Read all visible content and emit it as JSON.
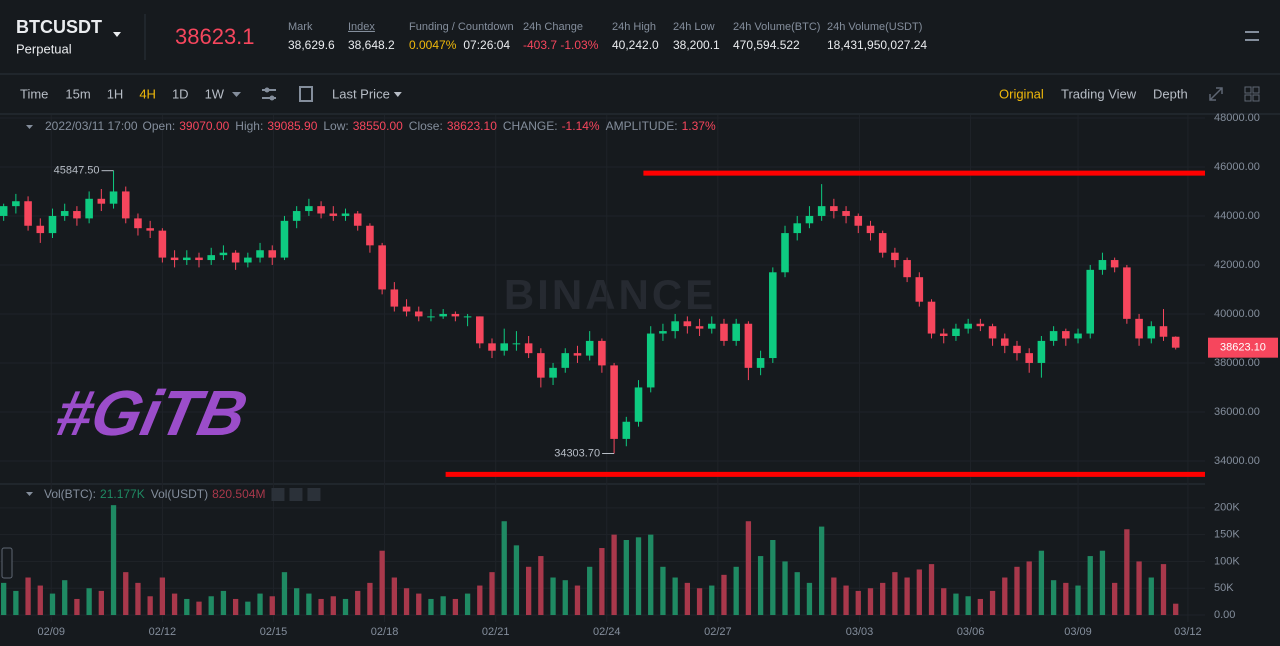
{
  "header": {
    "symbol": "BTCUSDT",
    "contract": "Perpetual",
    "last_price": "38623.1",
    "stats": [
      {
        "name": "Mark",
        "values": [
          "38,629.6"
        ]
      },
      {
        "name": "Index",
        "values": [
          "38,648.2"
        ]
      },
      {
        "name": "Funding / Countdown",
        "values": [
          "0.0047%",
          "07:26:04"
        ]
      },
      {
        "name": "24h Change",
        "values": [
          "-403.7 -1.03%"
        ]
      },
      {
        "name": "24h High",
        "values": [
          "40,242.0"
        ]
      },
      {
        "name": "24h Low",
        "values": [
          "38,200.1"
        ]
      },
      {
        "name": "24h Volume(BTC)",
        "values": [
          "470,594.522"
        ]
      },
      {
        "name": "24h Volume(USDT)",
        "values": [
          "18,431,950,027.24"
        ]
      }
    ]
  },
  "toolbar": {
    "intervals": [
      "Time",
      "15m",
      "1H",
      "4H",
      "1D",
      "1W"
    ],
    "active": "4H",
    "price_type": "Last Price",
    "views": [
      "Original",
      "Trading View",
      "Depth"
    ],
    "active_view": "Original"
  },
  "chart_data": {
    "type": "candlestick",
    "watermark": "BINANCE",
    "logo": "#GiTB",
    "legend": {
      "time": "2022/03/11 17:00",
      "items": [
        {
          "name": "Open:",
          "label": "39070.00"
        },
        {
          "name": "High:",
          "label": "39085.90"
        },
        {
          "name": "Low:",
          "label": "38550.00"
        },
        {
          "name": "Close:",
          "label": "38623.10"
        },
        {
          "name": "CHANGE:",
          "label": "-1.14%"
        },
        {
          "name": "AMPLITUDE:",
          "label": "1.37%"
        }
      ]
    },
    "up_color": "#0ecb81",
    "down_color": "#f6465d",
    "volume_up_color": "#1f8a63",
    "volume_down_color": "#a8384b",
    "xlim": [
      -0.3,
      98.4
    ],
    "xticks": [
      {
        "value": 3.9,
        "label": "02/09"
      },
      {
        "value": 13.0,
        "label": "02/12"
      },
      {
        "value": 22.1,
        "label": "02/15"
      },
      {
        "value": 31.2,
        "label": "02/18"
      },
      {
        "value": 40.3,
        "label": "02/21"
      },
      {
        "value": 49.4,
        "label": "02/24"
      },
      {
        "value": 58.5,
        "label": "02/27"
      },
      {
        "value": 70.1,
        "label": "03/03"
      },
      {
        "value": 79.2,
        "label": "03/06"
      },
      {
        "value": 88.0,
        "label": "03/09"
      },
      {
        "value": 97.0,
        "label": "03/12"
      }
    ],
    "ylim": [
      33100,
      48120
    ],
    "yticks": [
      {
        "value": 34000,
        "label": "34000.00"
      },
      {
        "value": 36000,
        "label": "36000.00"
      },
      {
        "value": 38000,
        "label": "38000.00"
      },
      {
        "value": 40000,
        "label": "40000.00"
      },
      {
        "value": 42000,
        "label": "42000.00"
      },
      {
        "value": 44000,
        "label": "44000.00"
      },
      {
        "value": 46000,
        "label": "46000.00"
      },
      {
        "value": 48000,
        "label": "48000.00"
      }
    ],
    "ohlc": [
      [
        44000,
        44500,
        43800,
        44400
      ],
      [
        44400,
        44900,
        44100,
        44600
      ],
      [
        44600,
        44800,
        43400,
        43600
      ],
      [
        43600,
        43900,
        42900,
        43300
      ],
      [
        43300,
        44300,
        43100,
        44000
      ],
      [
        44000,
        44500,
        43800,
        44200
      ],
      [
        44200,
        44400,
        43600,
        43900
      ],
      [
        43900,
        45000,
        43700,
        44700
      ],
      [
        44700,
        45100,
        44200,
        44500
      ],
      [
        44500,
        45847.5,
        44300,
        45000
      ],
      [
        45000,
        45200,
        43700,
        43900
      ],
      [
        43900,
        44100,
        43200,
        43500
      ],
      [
        43500,
        43800,
        43100,
        43400
      ],
      [
        43400,
        43500,
        42100,
        42300
      ],
      [
        42300,
        42600,
        41900,
        42200
      ],
      [
        42200,
        42600,
        42000,
        42300
      ],
      [
        42300,
        42500,
        41900,
        42200
      ],
      [
        42200,
        42700,
        42000,
        42400
      ],
      [
        42400,
        42800,
        42200,
        42500
      ],
      [
        42500,
        42600,
        41800,
        42100
      ],
      [
        42100,
        42500,
        41900,
        42300
      ],
      [
        42300,
        42900,
        42100,
        42600
      ],
      [
        42600,
        42800,
        42000,
        42300
      ],
      [
        42300,
        44000,
        42200,
        43800
      ],
      [
        43800,
        44400,
        43500,
        44200
      ],
      [
        44200,
        44700,
        44000,
        44400
      ],
      [
        44400,
        44600,
        43900,
        44100
      ],
      [
        44100,
        44400,
        43800,
        44000
      ],
      [
        44000,
        44300,
        43800,
        44100
      ],
      [
        44100,
        44200,
        43400,
        43600
      ],
      [
        43600,
        43700,
        42500,
        42800
      ],
      [
        42800,
        42900,
        40800,
        41000
      ],
      [
        41000,
        41300,
        40100,
        40300
      ],
      [
        40300,
        40600,
        39900,
        40100
      ],
      [
        40100,
        40300,
        39700,
        39900
      ],
      [
        39900,
        40200,
        39700,
        39900
      ],
      [
        39900,
        40200,
        39800,
        40000
      ],
      [
        40000,
        40100,
        39700,
        39900
      ],
      [
        39900,
        40000,
        39500,
        39900
      ],
      [
        39900,
        39900,
        38600,
        38800
      ],
      [
        38800,
        39000,
        38200,
        38500
      ],
      [
        38500,
        39400,
        38300,
        38800
      ],
      [
        38800,
        39300,
        38500,
        38800
      ],
      [
        38800,
        39100,
        38200,
        38400
      ],
      [
        38400,
        38600,
        37000,
        37400
      ],
      [
        37400,
        38000,
        37100,
        37800
      ],
      [
        37800,
        38600,
        37600,
        38400
      ],
      [
        38400,
        38700,
        38000,
        38300
      ],
      [
        38300,
        39300,
        38100,
        38900
      ],
      [
        38900,
        39000,
        37600,
        37900
      ],
      [
        37900,
        38000,
        34303.7,
        34900
      ],
      [
        34900,
        35800,
        34600,
        35600
      ],
      [
        35600,
        37300,
        35400,
        37000
      ],
      [
        37000,
        39500,
        36800,
        39200
      ],
      [
        39200,
        39600,
        38900,
        39300
      ],
      [
        39300,
        40000,
        39000,
        39700
      ],
      [
        39700,
        39900,
        39200,
        39500
      ],
      [
        39500,
        39800,
        39100,
        39400
      ],
      [
        39400,
        39900,
        39200,
        39600
      ],
      [
        39600,
        39800,
        38700,
        38900
      ],
      [
        38900,
        39800,
        38700,
        39600
      ],
      [
        39600,
        39700,
        37300,
        37800
      ],
      [
        37800,
        38500,
        37500,
        38200
      ],
      [
        38200,
        41900,
        38000,
        41700
      ],
      [
        41700,
        43600,
        41500,
        43300
      ],
      [
        43300,
        44000,
        43000,
        43700
      ],
      [
        43700,
        44400,
        43500,
        44000
      ],
      [
        44000,
        45300,
        43800,
        44400
      ],
      [
        44400,
        44700,
        43900,
        44200
      ],
      [
        44200,
        44400,
        43700,
        44000
      ],
      [
        44000,
        44100,
        43300,
        43600
      ],
      [
        43600,
        43800,
        43000,
        43300
      ],
      [
        43300,
        43400,
        42300,
        42500
      ],
      [
        42500,
        42700,
        41900,
        42200
      ],
      [
        42200,
        42300,
        41300,
        41500
      ],
      [
        41500,
        41700,
        40300,
        40500
      ],
      [
        40500,
        40600,
        39000,
        39200
      ],
      [
        39200,
        39400,
        38800,
        39100
      ],
      [
        39100,
        39600,
        38900,
        39400
      ],
      [
        39400,
        39800,
        39200,
        39600
      ],
      [
        39600,
        39800,
        39300,
        39500
      ],
      [
        39500,
        39600,
        38700,
        39000
      ],
      [
        39000,
        39200,
        38400,
        38700
      ],
      [
        38700,
        38900,
        38100,
        38400
      ],
      [
        38400,
        38600,
        37600,
        38000
      ],
      [
        38000,
        39100,
        37400,
        38900
      ],
      [
        38900,
        39500,
        38700,
        39300
      ],
      [
        39300,
        39400,
        38700,
        39000
      ],
      [
        39000,
        39400,
        38800,
        39200
      ],
      [
        39200,
        42000,
        39000,
        41800
      ],
      [
        41800,
        42500,
        41600,
        42200
      ],
      [
        42200,
        42300,
        41700,
        41900
      ],
      [
        41900,
        42000,
        39600,
        39800
      ],
      [
        39800,
        40000,
        38700,
        39000
      ],
      [
        39000,
        39700,
        38800,
        39500
      ],
      [
        39500,
        40200,
        38900,
        39070
      ],
      [
        39070,
        39085.9,
        38550,
        38623.1
      ]
    ],
    "annotations": [
      {
        "index": 9,
        "value": 45847.5,
        "label": "45847.50"
      },
      {
        "index": 50,
        "value": 34303.7,
        "label": "34303.70"
      }
    ],
    "price_tag": {
      "value": 38623.1,
      "label": "38623.10"
    },
    "drawn_lines": [
      {
        "value": 45750,
        "from": 52.4,
        "color": "#ff0000"
      },
      {
        "value": 33450,
        "from": 36.2,
        "color": "#ff0000"
      }
    ],
    "volume": {
      "legend": [
        {
          "name": "Vol(BTC):",
          "label": "21.177K"
        },
        {
          "name": "Vol(USDT)",
          "label": "820.504M"
        }
      ],
      "ylim": [
        -13000,
        237000
      ],
      "yticks": [
        {
          "value": 0,
          "label": "0.00"
        },
        {
          "value": 50000,
          "label": "50K"
        },
        {
          "value": 100000,
          "label": "100K"
        },
        {
          "value": 150000,
          "label": "150K"
        },
        {
          "value": 200000,
          "label": "200K"
        }
      ],
      "values": [
        60000,
        45000,
        70000,
        55000,
        40000,
        65000,
        30000,
        50000,
        45000,
        205000,
        80000,
        60000,
        35000,
        70000,
        40000,
        30000,
        25000,
        35000,
        45000,
        30000,
        25000,
        40000,
        35000,
        80000,
        50000,
        40000,
        30000,
        35000,
        30000,
        45000,
        60000,
        120000,
        70000,
        50000,
        40000,
        30000,
        35000,
        30000,
        40000,
        55000,
        80000,
        175000,
        130000,
        90000,
        110000,
        70000,
        65000,
        55000,
        90000,
        125000,
        150000,
        140000,
        145000,
        150000,
        90000,
        70000,
        60000,
        50000,
        55000,
        75000,
        90000,
        175000,
        110000,
        140000,
        100000,
        80000,
        60000,
        165000,
        70000,
        55000,
        45000,
        50000,
        60000,
        80000,
        70000,
        85000,
        95000,
        50000,
        40000,
        35000,
        30000,
        45000,
        70000,
        90000,
        100000,
        120000,
        65000,
        60000,
        55000,
        110000,
        120000,
        60000,
        160000,
        100000,
        70000,
        95000,
        21177
      ]
    }
  }
}
